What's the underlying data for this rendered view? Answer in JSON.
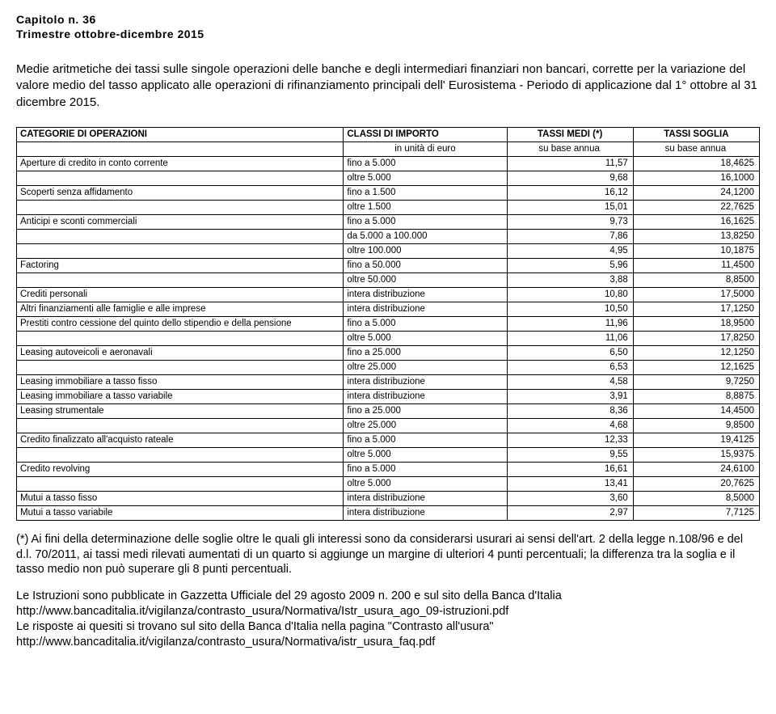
{
  "chapter": "Capitolo n. 36",
  "period": "Trimestre ottobre-dicembre 2015",
  "intro": "Medie aritmetiche dei tassi sulle singole operazioni delle banche e degli intermediari finanziari non bancari, corrette per la variazione del valore medio del tasso applicato alle operazioni di rifinanziamento principali dell' Eurosistema - Periodo di applicazione dal 1° ottobre al 31 dicembre 2015.",
  "headers": {
    "cat": "CATEGORIE DI OPERAZIONI",
    "class": "CLASSI DI IMPORTO",
    "medi": "TASSI MEDI (*)",
    "soglia": "TASSI SOGLIA",
    "sub_class": "in unità di euro",
    "sub_medi": "su base annua",
    "sub_soglia": "su base annua"
  },
  "rows": [
    {
      "cat": "Aperture di credito in conto corrente",
      "cls": "fino a 5.000",
      "medi": "11,57",
      "soglia": "18,4625"
    },
    {
      "cat": "",
      "cls": "oltre 5.000",
      "medi": "9,68",
      "soglia": "16,1000"
    },
    {
      "cat": "Scoperti senza affidamento",
      "cls": "fino a 1.500",
      "medi": "16,12",
      "soglia": "24,1200"
    },
    {
      "cat": "",
      "cls": "oltre 1.500",
      "medi": "15,01",
      "soglia": "22,7625"
    },
    {
      "cat": "Anticipi e sconti commerciali",
      "cls": "fino a 5.000",
      "medi": "9,73",
      "soglia": "16,1625"
    },
    {
      "cat": "",
      "cls": "da 5.000 a 100.000",
      "medi": "7,86",
      "soglia": "13,8250"
    },
    {
      "cat": "",
      "cls": "oltre 100.000",
      "medi": "4,95",
      "soglia": "10,1875"
    },
    {
      "cat": "Factoring",
      "cls": "fino a 50.000",
      "medi": "5,96",
      "soglia": "11,4500"
    },
    {
      "cat": "",
      "cls": "oltre 50.000",
      "medi": "3,88",
      "soglia": "8,8500"
    },
    {
      "cat": "Crediti personali",
      "cls": "intera distribuzione",
      "medi": "10,80",
      "soglia": "17,5000"
    },
    {
      "cat": "Altri finanziamenti alle famiglie e alle imprese",
      "cls": "intera distribuzione",
      "medi": "10,50",
      "soglia": "17,1250"
    },
    {
      "cat": "Prestiti contro cessione del quinto dello stipendio e della pensione",
      "cls": "fino a 5.000",
      "medi": "11,96",
      "soglia": "18,9500"
    },
    {
      "cat": "",
      "cls": "oltre 5.000",
      "medi": "11,06",
      "soglia": "17,8250"
    },
    {
      "cat": "Leasing autoveicoli e aeronavali",
      "cls": "fino a 25.000",
      "medi": "6,50",
      "soglia": "12,1250"
    },
    {
      "cat": "",
      "cls": "oltre 25.000",
      "medi": "6,53",
      "soglia": "12,1625"
    },
    {
      "cat": "Leasing immobiliare a tasso fisso",
      "cls": "intera distribuzione",
      "medi": "4,58",
      "soglia": "9,7250"
    },
    {
      "cat": "Leasing immobiliare a tasso variabile",
      "cls": "intera distribuzione",
      "medi": "3,91",
      "soglia": "8,8875"
    },
    {
      "cat": "Leasing strumentale",
      "cls": "fino a 25.000",
      "medi": "8,36",
      "soglia": "14,4500"
    },
    {
      "cat": "",
      "cls": "oltre 25.000",
      "medi": "4,68",
      "soglia": "9,8500"
    },
    {
      "cat": "Credito finalizzato all'acquisto rateale",
      "cls": "fino a 5.000",
      "medi": "12,33",
      "soglia": "19,4125"
    },
    {
      "cat": "",
      "cls": "oltre 5.000",
      "medi": "9,55",
      "soglia": "15,9375"
    },
    {
      "cat": "Credito revolving",
      "cls": "fino a 5.000",
      "medi": "16,61",
      "soglia": "24,6100"
    },
    {
      "cat": "",
      "cls": "oltre 5.000",
      "medi": "13,41",
      "soglia": "20,7625"
    },
    {
      "cat": "Mutui a tasso fisso",
      "cls": "intera distribuzione",
      "medi": "3,60",
      "soglia": "8,5000"
    },
    {
      "cat": "Mutui a tasso variabile",
      "cls": "intera distribuzione",
      "medi": "2,97",
      "soglia": "7,7125"
    }
  ],
  "footnote_marker": "(*)",
  "footnote_text": "Ai fini della determinazione delle soglie oltre le quali gli interessi sono da considerarsi usurari ai sensi dell'art. 2 della legge n.108/96 e del d.l. 70/2011, ai tassi medi rilevati aumentati di un quarto si aggiunge un margine di ulteriori 4 punti percentuali; la differenza tra la soglia e il tasso medio non può superare gli 8 punti percentuali.",
  "para2": "Le Istruzioni sono pubblicate in Gazzetta Ufficiale del 29 agosto 2009 n. 200 e sul sito della Banca d'Italia",
  "url1": "http://www.bancaditalia.it/vigilanza/contrasto_usura/Normativa/Istr_usura_ago_09-istruzioni.pdf",
  "para3": "Le risposte ai quesiti si trovano sul sito della Banca d'Italia nella pagina \"Contrasto all'usura\"",
  "url2": "http://www.bancaditalia.it/vigilanza/contrasto_usura/Normativa/istr_usura_faq.pdf"
}
